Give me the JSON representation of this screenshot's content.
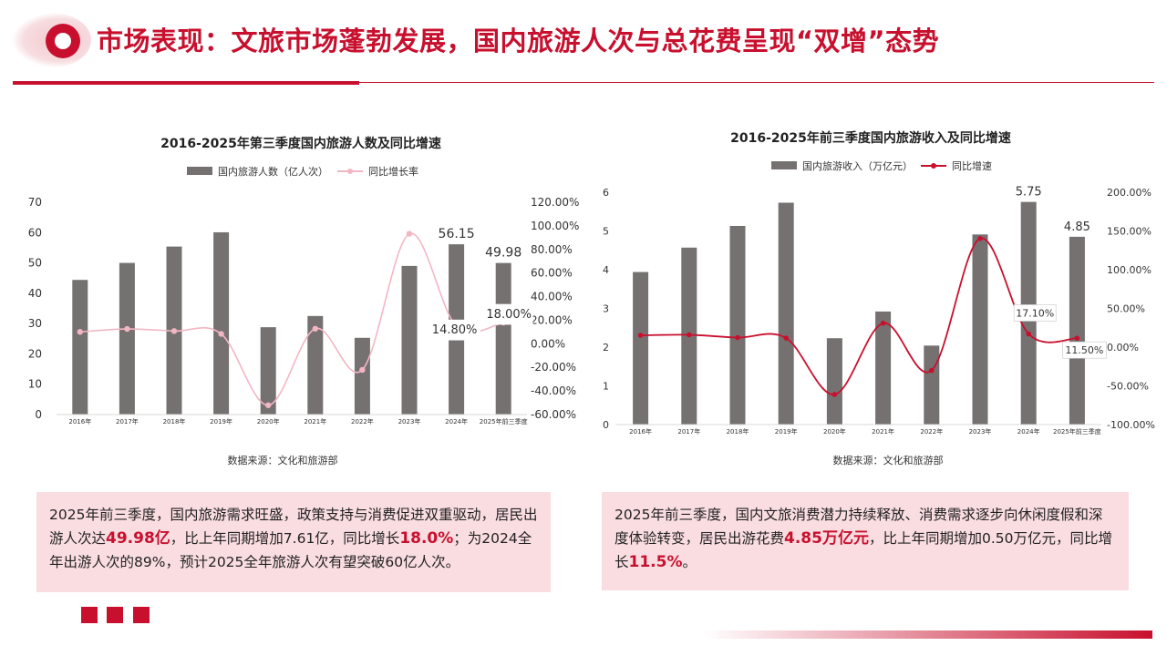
{
  "page": {
    "title": "市场表现：文旅市场蓬勃发展，国内旅游人次与总花费呈现“双增”态势"
  },
  "chart_data": [
    {
      "type": "bar",
      "title": "2016-2025年第三季度国内旅游人数及同比增速",
      "categories": [
        "2016年",
        "2017年",
        "2018年",
        "2019年",
        "2020年",
        "2021年",
        "2022年",
        "2023年",
        "2024年",
        "2025年前三季度"
      ],
      "series": [
        {
          "name": "国内旅游人数（亿人次）",
          "type": "bar",
          "axis": "left",
          "color": "#767171",
          "values": [
            44.4,
            50.0,
            55.4,
            60.1,
            28.8,
            32.5,
            25.3,
            49.0,
            56.15,
            49.98
          ]
        },
        {
          "name": "同比增长率",
          "type": "line",
          "axis": "right",
          "color": "#f2b6c3",
          "values": [
            10.1,
            12.6,
            10.8,
            8.4,
            -52.1,
            12.8,
            -22.1,
            93.3,
            14.8,
            18.0
          ]
        }
      ],
      "ylim_left": [
        0,
        70
      ],
      "yticks_left": [
        "0",
        "10",
        "20",
        "30",
        "40",
        "50",
        "60",
        "70"
      ],
      "ylim_right": [
        -60,
        120
      ],
      "yticks_right": [
        "-60.00%",
        "-40.00%",
        "-20.00%",
        "0.00%",
        "20.00%",
        "40.00%",
        "60.00%",
        "80.00%",
        "100.00%",
        "120.00%"
      ],
      "bar_labels": [
        {
          "index": 8,
          "text": "56.15"
        },
        {
          "index": 9,
          "text": "49.98"
        }
      ],
      "line_labels": [
        {
          "index": 8,
          "text": "14.80%"
        },
        {
          "index": 9,
          "text": "18.00%"
        }
      ],
      "grid": false,
      "legend": "top"
    },
    {
      "type": "bar",
      "title": "2016-2025年前三季度国内旅游收入及同比增速",
      "categories": [
        "2016年",
        "2017年",
        "2018年",
        "2019年",
        "2020年",
        "2021年",
        "2022年",
        "2023年",
        "2024年",
        "2025年前三季度"
      ],
      "series": [
        {
          "name": "国内旅游收入（万亿元）",
          "type": "bar",
          "axis": "left",
          "color": "#767171",
          "values": [
            3.94,
            4.57,
            5.13,
            5.73,
            2.23,
            2.92,
            2.04,
            4.91,
            5.75,
            4.85
          ]
        },
        {
          "name": "同比增速",
          "type": "line",
          "axis": "right",
          "color": "#c8102e",
          "values": [
            15.2,
            15.9,
            12.3,
            11.7,
            -61.1,
            30.9,
            -30.0,
            140.3,
            17.1,
            11.5
          ]
        }
      ],
      "ylim_left": [
        0,
        6
      ],
      "yticks_left": [
        "0",
        "1",
        "2",
        "3",
        "4",
        "5",
        "6"
      ],
      "ylim_right": [
        -100,
        200
      ],
      "yticks_right": [
        "-100.00%",
        "-50.00%",
        "0.00%",
        "50.00%",
        "100.00%",
        "150.00%",
        "200.00%"
      ],
      "bar_labels": [
        {
          "index": 8,
          "text": "5.75"
        },
        {
          "index": 9,
          "text": "4.85"
        }
      ],
      "line_labels": [
        {
          "index": 8,
          "text": "17.10%"
        },
        {
          "index": 9,
          "text": "11.50%"
        }
      ],
      "grid": false,
      "legend": "top"
    }
  ],
  "source_left": "数据来源：文化和旅游部",
  "source_right": "数据来源：文化和旅游部",
  "text_left": [
    {
      "t": "2025年前三季度，国内旅游需求旺盛，政策支持与消费促进双重驱动，居民出游人次达",
      "hl": false
    },
    {
      "t": "49.98亿",
      "hl": true
    },
    {
      "t": "，比上年同期增加7.61亿，同比增长",
      "hl": false
    },
    {
      "t": "18.0%",
      "hl": true
    },
    {
      "t": "；为2024全年出游人次的89%，预计2025全年旅游人次有望突破60亿人次。",
      "hl": false
    }
  ],
  "text_right": [
    {
      "t": "2025年前三季度，国内文旅消费潜力持续释放、消费需求逐步向休闲度假和深度体验转变，居民出游花费",
      "hl": false
    },
    {
      "t": "4.85万亿元",
      "hl": true
    },
    {
      "t": "，比上年同期增加0.50万亿元，同比增长",
      "hl": false
    },
    {
      "t": "11.5%",
      "hl": true
    },
    {
      "t": "。",
      "hl": false
    }
  ]
}
